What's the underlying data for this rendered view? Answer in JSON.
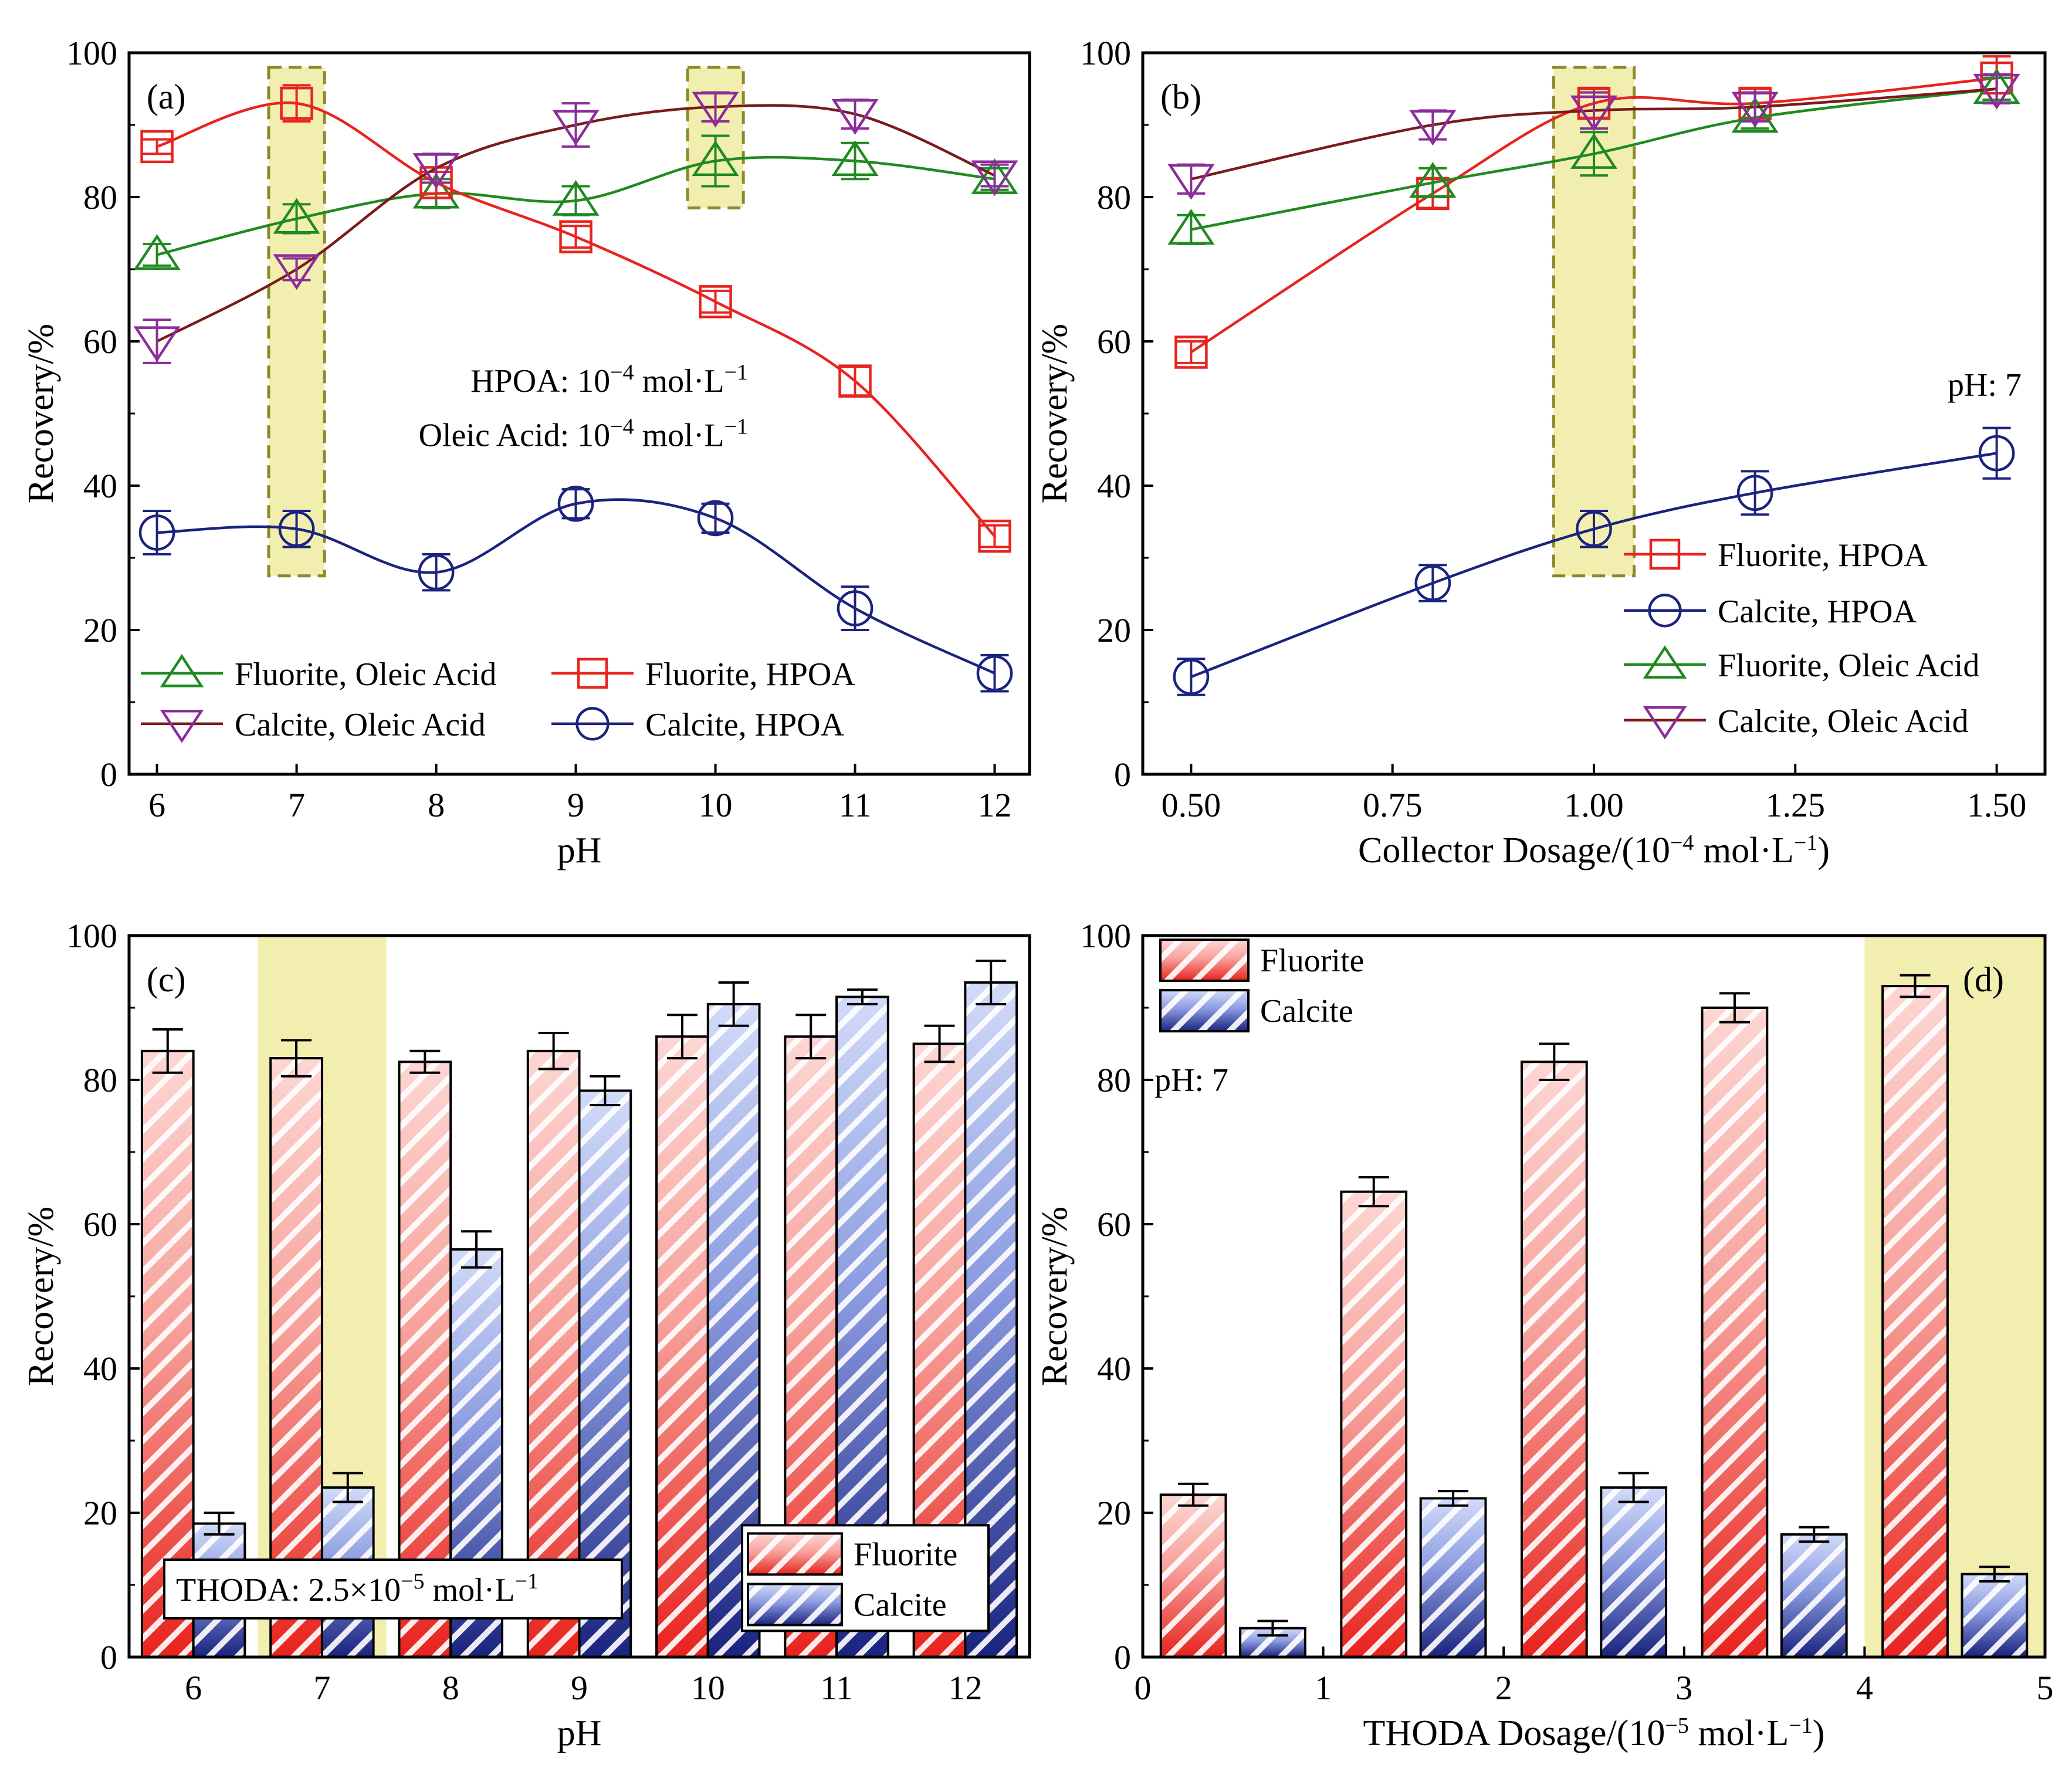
{
  "colors": {
    "fluorite_hpoa": "#e8231e",
    "calcite_hpoa": "#1a237e",
    "fluorite_oleic": "#1f8a1f",
    "calcite_oleic": "#7a1a1a",
    "calcite_oleic_marker": "#8b2c9a",
    "highlight_fill": "#f2eeb0",
    "highlight_stroke": "#8a8a2a",
    "bar_fluorite_dark": "#e8231e",
    "bar_fluorite_light": "#fbd0cd",
    "bar_calcite_dark": "#1a237e",
    "bar_calcite_light": "#c9d2f5"
  },
  "chart_data": [
    {
      "id": "a",
      "type": "line",
      "panel_label": "(a)",
      "xlabel": "pH",
      "ylabel": "Recovery/%",
      "xlim": [
        5.8,
        12.25
      ],
      "ylim": [
        0,
        100
      ],
      "xticks": [
        "6",
        "7",
        "8",
        "9",
        "10",
        "11",
        "12"
      ],
      "yticks": [
        "0",
        "20",
        "40",
        "60",
        "80",
        "100"
      ],
      "highlight_x": [
        [
          6.8,
          7.2
        ],
        [
          9.8,
          10.2
        ]
      ],
      "annotations": [
        {
          "pre": "HPOA: 10",
          "sup": "−4",
          "post": " mol·L",
          "sup2": "−1"
        },
        {
          "pre": "Oleic Acid: 10",
          "sup": "−4",
          "post": " mol·L",
          "sup2": "−1"
        }
      ],
      "series": [
        {
          "name": "Fluorite, Oleic Acid",
          "marker": "triangle-up",
          "color_key": "fluorite_oleic",
          "x": [
            6,
            7,
            8,
            9,
            10,
            11,
            12
          ],
          "y": [
            72,
            77,
            80.5,
            79.5,
            85,
            85,
            82.5
          ],
          "err": [
            1.5,
            2,
            2,
            2,
            3.5,
            2.5,
            1.5
          ]
        },
        {
          "name": "Fluorite, HPOA",
          "marker": "square",
          "color_key": "fluorite_hpoa",
          "x": [
            6,
            7,
            8,
            9,
            10,
            11,
            12
          ],
          "y": [
            87,
            93,
            82,
            74.5,
            65.5,
            54.5,
            33
          ],
          "err": [
            1,
            2.5,
            1.5,
            1.5,
            1.5,
            2,
            1.5
          ]
        },
        {
          "name": "Calcite, Oleic Acid",
          "marker": "triangle-down",
          "color_key": "calcite_oleic",
          "x": [
            6,
            7,
            8,
            9,
            10,
            11,
            12
          ],
          "y": [
            60,
            70,
            84,
            90,
            92.5,
            91.5,
            83
          ],
          "err": [
            3,
            1.5,
            2,
            3,
            2,
            2,
            1.5
          ]
        },
        {
          "name": "Calcite, HPOA",
          "marker": "circle",
          "color_key": "calcite_hpoa",
          "x": [
            6,
            7,
            8,
            9,
            10,
            11,
            12
          ],
          "y": [
            33.5,
            34,
            28,
            37.5,
            35.5,
            23,
            14
          ],
          "err": [
            3,
            2.5,
            2.5,
            2,
            2,
            3,
            2.5
          ]
        }
      ]
    },
    {
      "id": "b",
      "type": "line",
      "panel_label": "(b)",
      "xlabel": "Collector Dosage/(10",
      "xlabel_sup": "−4",
      "xlabel_post": " mol·L",
      "xlabel_sup2": "−1",
      "xlabel_end": ")",
      "ylabel": "Recovery/%",
      "xlim": [
        0.44,
        1.56
      ],
      "ylim": [
        0,
        100
      ],
      "xticks": [
        "0.50",
        "0.75",
        "1.00",
        "1.25",
        "1.50"
      ],
      "yticks": [
        "0",
        "20",
        "40",
        "60",
        "80",
        "100"
      ],
      "highlight_x": [
        [
          0.95,
          1.05
        ]
      ],
      "annotation": "pH: 7",
      "series": [
        {
          "name": "Fluorite, HPOA",
          "marker": "square",
          "color_key": "fluorite_hpoa",
          "x": [
            0.5,
            0.8,
            1.0,
            1.2,
            1.5
          ],
          "y": [
            58.5,
            80.5,
            93,
            93,
            96.5
          ],
          "err": [
            1.5,
            2,
            2,
            2,
            3
          ]
        },
        {
          "name": "Calcite, HPOA",
          "marker": "circle",
          "color_key": "calcite_hpoa",
          "x": [
            0.5,
            0.8,
            1.0,
            1.2,
            1.5
          ],
          "y": [
            13.5,
            26.5,
            34,
            39,
            44.5
          ],
          "err": [
            2.5,
            2.5,
            2.5,
            3,
            3.5
          ]
        },
        {
          "name": "Fluorite, Oleic Acid",
          "marker": "triangle-up",
          "color_key": "fluorite_oleic",
          "x": [
            0.5,
            0.8,
            1.0,
            1.2,
            1.5
          ],
          "y": [
            75.5,
            82,
            86,
            91,
            95
          ],
          "err": [
            2,
            2,
            3,
            1.5,
            1.5
          ]
        },
        {
          "name": "Calcite, Oleic Acid",
          "marker": "triangle-down",
          "color_key": "calcite_oleic",
          "x": [
            0.5,
            0.8,
            1.0,
            1.2,
            1.5
          ],
          "y": [
            82.5,
            90,
            92,
            92.5,
            95
          ],
          "err": [
            2,
            2,
            2.5,
            2,
            2
          ]
        }
      ]
    },
    {
      "id": "c",
      "type": "bar",
      "panel_label": "(c)",
      "xlabel": "pH",
      "ylabel": "Recovery/%",
      "ylim": [
        0,
        100
      ],
      "categories": [
        "6",
        "7",
        "8",
        "9",
        "10",
        "11",
        "12"
      ],
      "yticks": [
        "0",
        "20",
        "40",
        "60",
        "80",
        "100"
      ],
      "highlight_categories": [
        1
      ],
      "annotation": {
        "pre": "THODA: 2.5×10",
        "sup": "−5",
        "post": " mol·L",
        "sup2": "−1"
      },
      "series": [
        {
          "name": "Fluorite",
          "values": [
            84,
            83,
            82.5,
            84,
            86,
            86,
            85
          ],
          "err": [
            3,
            2.5,
            1.5,
            2.5,
            3,
            3,
            2.5
          ]
        },
        {
          "name": "Calcite",
          "values": [
            18.5,
            23.5,
            56.5,
            78.5,
            90.5,
            91.5,
            93.5
          ],
          "err": [
            1.5,
            2,
            2.5,
            2,
            3,
            1,
            3
          ]
        }
      ]
    },
    {
      "id": "d",
      "type": "bar",
      "panel_label": "(d)",
      "xlabel": "THODA Dosage/(10",
      "xlabel_sup": "−5",
      "xlabel_post": " mol·L",
      "xlabel_sup2": "−1",
      "xlabel_end": ")",
      "ylabel": "Recovery/%",
      "xlim": [
        0,
        5
      ],
      "ylim": [
        0,
        100
      ],
      "xticks": [
        "0",
        "1",
        "2",
        "3",
        "4",
        "5"
      ],
      "yticks": [
        "0",
        "20",
        "40",
        "60",
        "80",
        "100"
      ],
      "x": [
        0.5,
        1.5,
        2.5,
        3.5,
        4.5
      ],
      "highlight_x": [
        [
          4.0,
          5.0
        ]
      ],
      "annotation": "pH: 7",
      "series": [
        {
          "name": "Fluorite",
          "values": [
            22.5,
            64.5,
            82.5,
            90,
            93
          ],
          "err": [
            1.5,
            2,
            2.5,
            2,
            1.5
          ]
        },
        {
          "name": "Calcite",
          "values": [
            4,
            22,
            23.5,
            17,
            11.5
          ],
          "err": [
            1,
            1,
            2,
            1,
            1
          ]
        }
      ]
    }
  ]
}
